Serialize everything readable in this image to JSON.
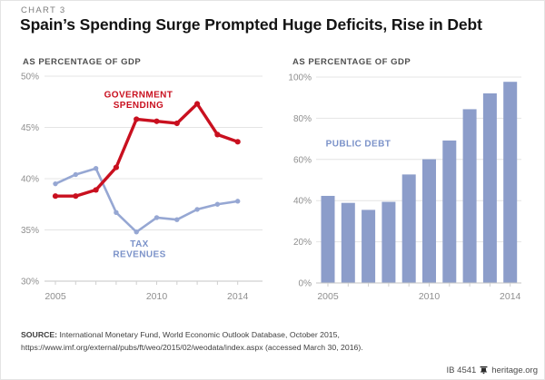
{
  "page": {
    "eyebrow": "CHART 3",
    "title": "Spain’s Spending Surge Prompted Huge Deficits, Rise in Debt",
    "footer": {
      "source_label": "SOURCE:",
      "source_line1": " International Monetary Fund, World Economic Outlook Database, October 2015,",
      "source_line2": "https://www.imf.org/external/pubs/ft/weo/2015/02/weodata/index.aspx (accessed March 30, 2016).",
      "report_id": "IB 4541",
      "site": "heritage.org",
      "bell_icon": "heritage-bell-icon"
    }
  },
  "colors": {
    "series_red": "#c9101f",
    "series_blue": "#96a7d3",
    "bar_blue": "#8c9dca",
    "label_blue": "#7b92c9",
    "grid": "#e4e4e4",
    "axis": "#c6c6c6",
    "tick": "#cfcfcf",
    "tick_text": "#8f8f8f"
  },
  "chart_data": [
    {
      "type": "line",
      "title": "AS PERCENTAGE OF GDP",
      "x": [
        2005,
        2006,
        2007,
        2008,
        2009,
        2010,
        2011,
        2012,
        2013,
        2014
      ],
      "xlim": [
        2005,
        2014
      ],
      "ylim": [
        30,
        50
      ],
      "yticks": [
        30,
        35,
        40,
        45,
        50
      ],
      "ytick_suffix": "%",
      "xtick_labels": [
        2005,
        2010,
        2014
      ],
      "grid": true,
      "legend_position": "inline-annotations",
      "series": [
        {
          "name": "GOVERNMENT SPENDING",
          "color_key": "red",
          "values": [
            38.3,
            38.3,
            38.9,
            41.1,
            45.8,
            45.6,
            45.4,
            47.3,
            44.3,
            43.6
          ]
        },
        {
          "name": "TAX REVENUES",
          "color_key": "blue",
          "values": [
            39.5,
            40.4,
            41.0,
            36.7,
            34.8,
            36.2,
            36.0,
            37.0,
            37.5,
            37.8
          ]
        }
      ],
      "annotations": [
        {
          "lines": [
            "GOVERNMENT",
            "SPENDING"
          ],
          "year": 2009.1,
          "value": 47.9,
          "color_key": "red"
        },
        {
          "lines": [
            "TAX",
            "REVENUES"
          ],
          "year": 2009.15,
          "value": 33.35,
          "color_key": "blue"
        }
      ]
    },
    {
      "type": "bar",
      "title": "AS PERCENTAGE OF GDP",
      "categories": [
        2005,
        2006,
        2007,
        2008,
        2009,
        2010,
        2011,
        2012,
        2013,
        2014
      ],
      "values": [
        42.3,
        38.9,
        35.5,
        39.4,
        52.7,
        60.1,
        69.2,
        84.4,
        92.1,
        97.7
      ],
      "ylim": [
        0,
        100
      ],
      "yticks": [
        0,
        20,
        40,
        60,
        80,
        100
      ],
      "ytick_suffix": "%",
      "xtick_labels": [
        2005,
        2010,
        2014
      ],
      "grid": true,
      "annotations": [
        {
          "lines": [
            "PUBLIC DEBT"
          ],
          "year": 2006.5,
          "value": 66.3,
          "color_key": "blue"
        }
      ]
    }
  ]
}
